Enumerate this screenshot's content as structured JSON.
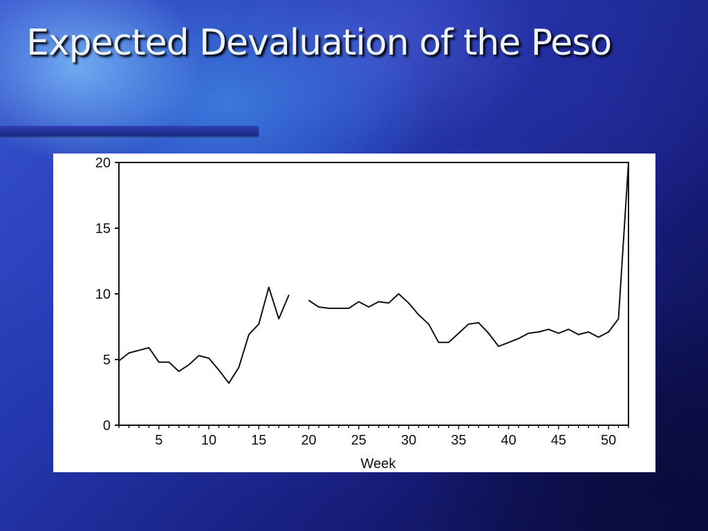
{
  "slide": {
    "title": "Expected Devaluation of the Peso",
    "title_color": "#eef4ff",
    "rule_color": "#2f3fb6"
  },
  "chart_data": {
    "type": "line",
    "title": "",
    "xlabel": "Week",
    "ylabel": "",
    "xlim": [
      1,
      52
    ],
    "ylim": [
      0,
      20
    ],
    "grid": false,
    "legend": "none",
    "x_ticks": [
      5,
      10,
      15,
      20,
      25,
      30,
      35,
      40,
      45,
      50
    ],
    "y_ticks": [
      0,
      5,
      10,
      15,
      20
    ],
    "series": [
      {
        "color": "#111111",
        "segments": [
          {
            "x": [
              1,
              2,
              3,
              4,
              5,
              6,
              7,
              8,
              9,
              10,
              11,
              12,
              13,
              14,
              15,
              16,
              17,
              18
            ],
            "y": [
              4.9,
              5.5,
              5.7,
              5.9,
              4.8,
              4.8,
              4.1,
              4.6,
              5.3,
              5.1,
              4.2,
              3.2,
              4.4,
              6.9,
              7.7,
              10.5,
              8.1,
              9.9
            ]
          },
          {
            "x": [
              20,
              21,
              22,
              23,
              24,
              25,
              26,
              27,
              28,
              29,
              30,
              31,
              32,
              33,
              34,
              35,
              36,
              37,
              38,
              39,
              40,
              41,
              42,
              43,
              44,
              45,
              46,
              47,
              48,
              49,
              50,
              51,
              52
            ],
            "y": [
              9.5,
              9.0,
              8.9,
              8.9,
              8.9,
              9.4,
              9.0,
              9.4,
              9.3,
              10.0,
              9.3,
              8.4,
              7.7,
              6.3,
              6.3,
              7.0,
              7.7,
              7.8,
              7.0,
              6.0,
              6.3,
              6.6,
              7.0,
              7.1,
              7.3,
              7.0,
              7.3,
              6.9,
              7.1,
              6.7,
              7.1,
              8.1,
              20.0
            ]
          }
        ]
      }
    ]
  }
}
